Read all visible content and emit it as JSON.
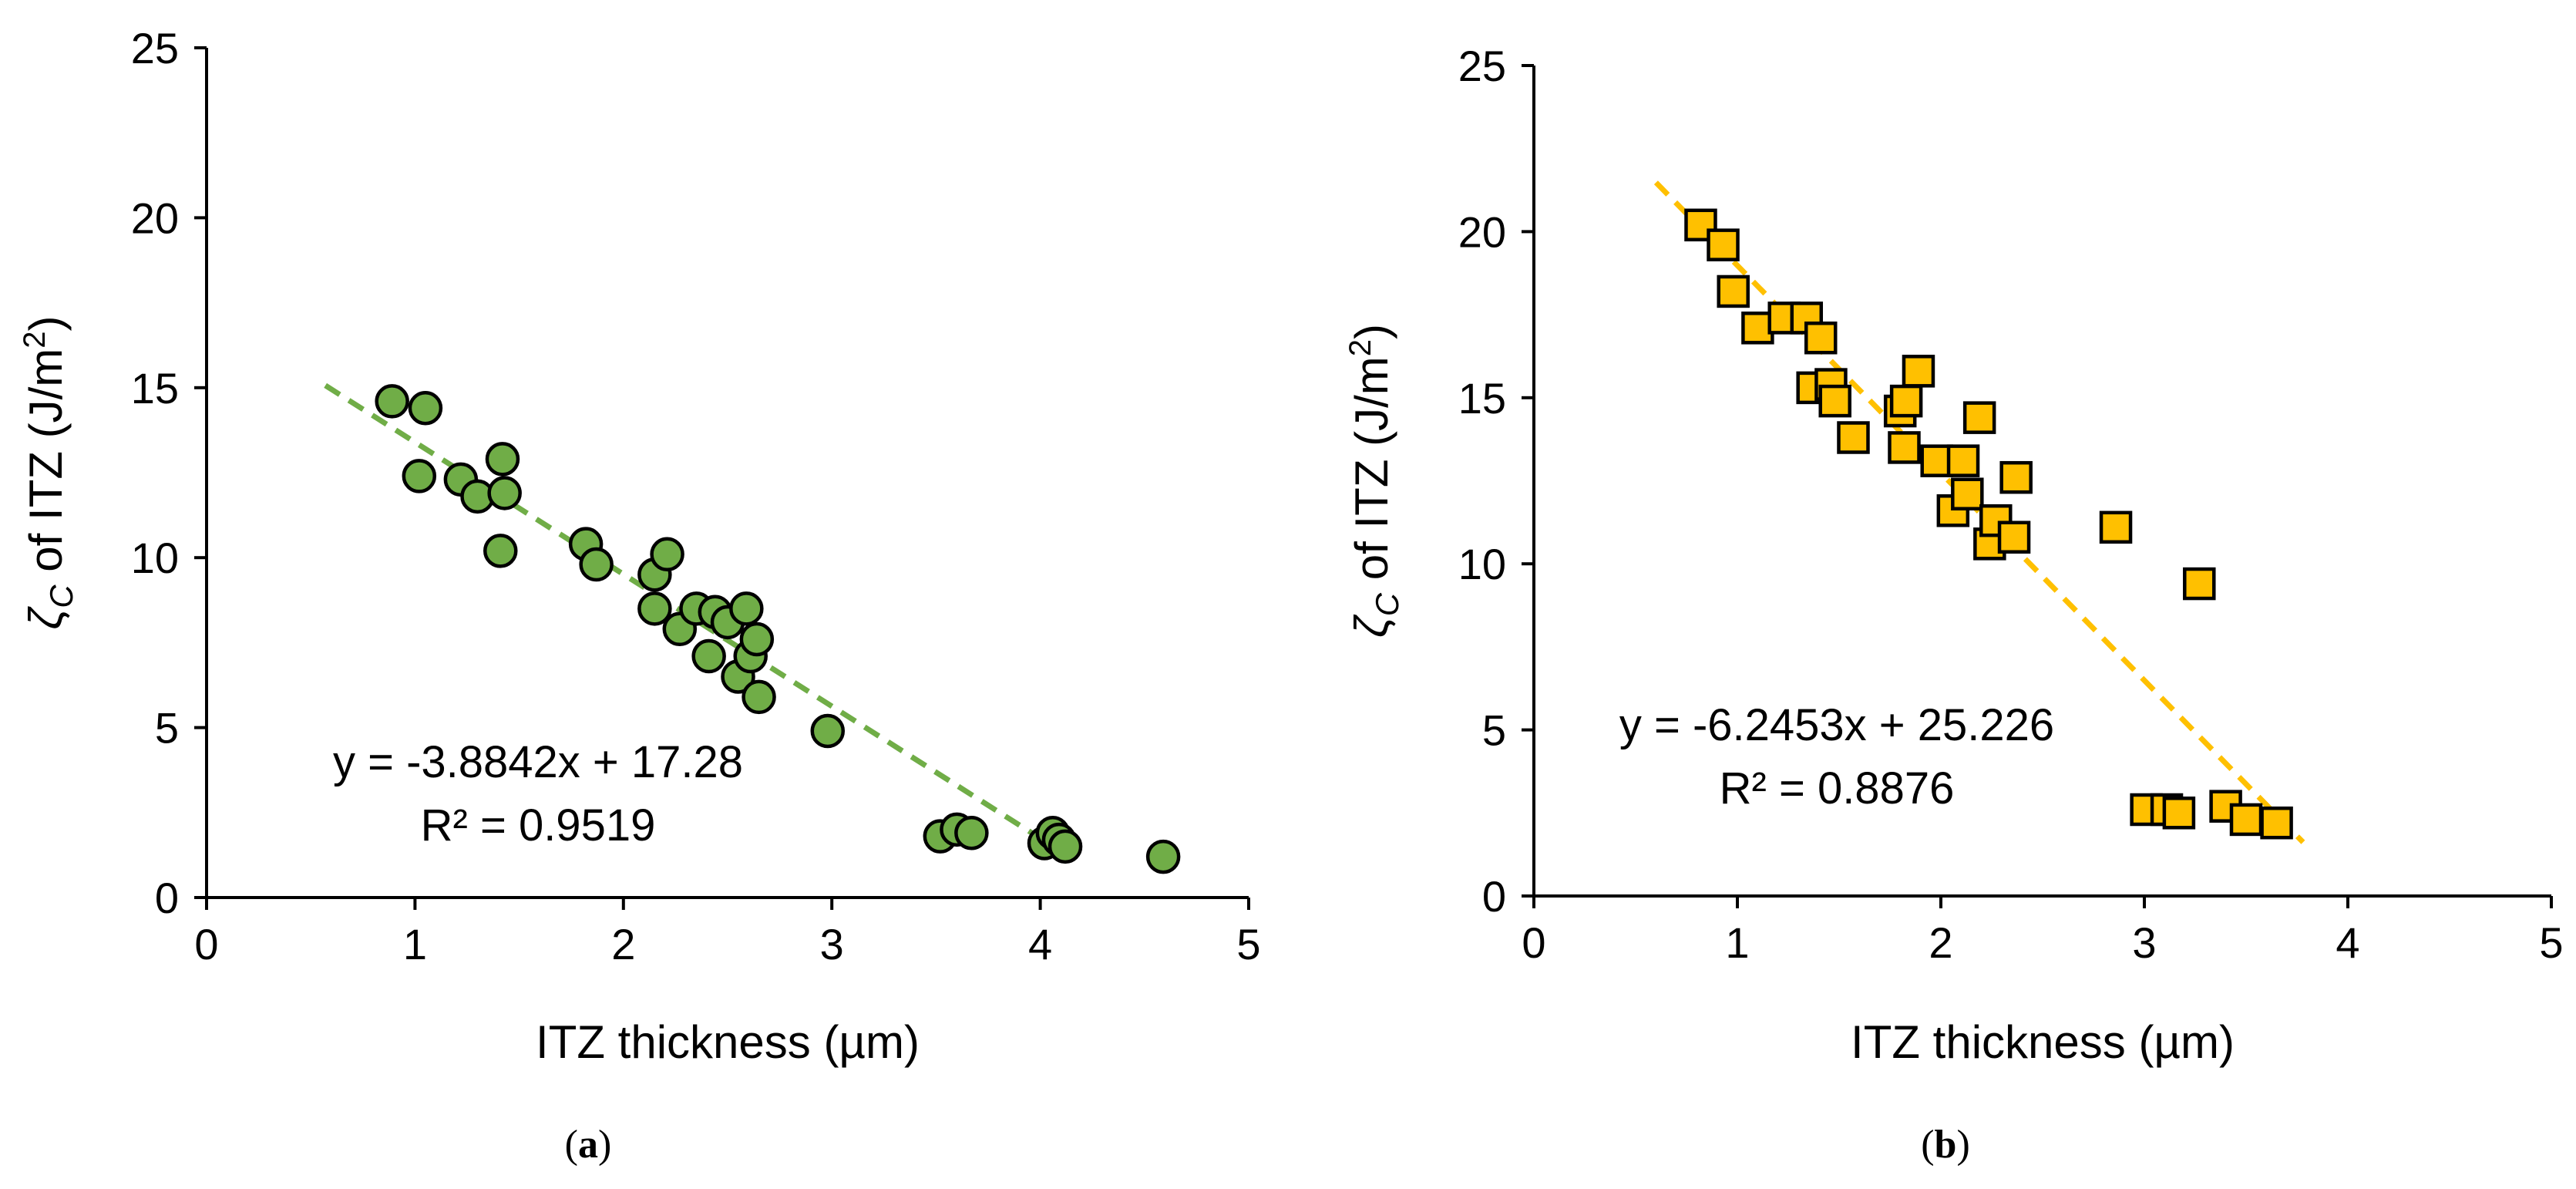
{
  "chart_data": [
    {
      "type": "scatter",
      "panel_label": "a",
      "xlabel": "ITZ thickness (µm)",
      "ylabel": {
        "symbol": "ζ",
        "sub": "C",
        "text": " of ITZ (J/m",
        "sup": "2",
        "tail": ")"
      },
      "xlim": [
        0,
        5
      ],
      "ylim": [
        0,
        25
      ],
      "xticks": [
        0,
        1,
        2,
        3,
        4,
        5
      ],
      "yticks": [
        0,
        5,
        10,
        15,
        20,
        25
      ],
      "marker": "circle",
      "marker_color": "#70ad47",
      "trend_color": "#70ad47",
      "equation": "y = -3.8842x + 17.28",
      "r2": "R² = 0.9519",
      "trendline": {
        "slope": -3.8842,
        "intercept": 17.28,
        "x_range": [
          0.57,
          4.13
        ]
      },
      "points": {
        "x": [
          0.89,
          1.05,
          1.02,
          1.22,
          1.3,
          1.42,
          1.43,
          1.41,
          1.82,
          1.87,
          2.15,
          2.21,
          2.15,
          2.27,
          2.35,
          2.44,
          2.41,
          2.5,
          2.59,
          2.55,
          2.61,
          2.64,
          2.65,
          2.98,
          3.52,
          3.6,
          3.67,
          4.02,
          4.06,
          4.09,
          4.12,
          4.59
        ],
        "y": [
          14.6,
          14.4,
          12.4,
          12.3,
          11.8,
          12.9,
          11.9,
          10.2,
          10.4,
          9.8,
          9.5,
          10.1,
          8.5,
          7.9,
          8.5,
          8.4,
          7.1,
          8.1,
          8.5,
          6.5,
          7.1,
          7.6,
          5.9,
          4.9,
          1.8,
          2.0,
          1.9,
          1.6,
          1.9,
          1.7,
          1.5,
          1.2
        ]
      }
    },
    {
      "type": "scatter",
      "panel_label": "b",
      "xlabel": "ITZ thickness (µm)",
      "ylabel": {
        "symbol": "ζ",
        "sub": "C",
        "text": " of ITZ (J/m",
        "sup": "2",
        "tail": ")"
      },
      "xlim": [
        0,
        5
      ],
      "ylim": [
        0,
        25
      ],
      "xticks": [
        0,
        1,
        2,
        3,
        4,
        5
      ],
      "yticks": [
        0,
        5,
        10,
        15,
        20,
        25
      ],
      "marker": "square",
      "marker_color": "#ffc000",
      "trend_color": "#ffc000",
      "equation": "y = -6.2453x + 25.226",
      "r2": "R² = 0.8876",
      "trendline": {
        "slope": -6.2453,
        "intercept": 25.226,
        "x_range": [
          0.6,
          3.78
        ]
      },
      "points": {
        "x": [
          0.82,
          0.93,
          0.98,
          1.1,
          1.23,
          1.34,
          1.37,
          1.41,
          1.46,
          1.48,
          1.57,
          1.8,
          1.83,
          1.82,
          1.89,
          1.98,
          2.06,
          2.11,
          2.13,
          2.19,
          2.24,
          2.27,
          2.36,
          2.37,
          2.86,
          3.01,
          3.11,
          3.17,
          3.27,
          3.4,
          3.5,
          3.65
        ],
        "y": [
          20.2,
          19.6,
          18.2,
          17.1,
          17.4,
          17.4,
          15.3,
          16.8,
          15.4,
          14.9,
          13.8,
          14.6,
          14.9,
          13.5,
          15.8,
          13.1,
          11.6,
          13.1,
          12.1,
          14.4,
          10.6,
          11.3,
          10.8,
          12.6,
          11.1,
          2.6,
          2.6,
          2.5,
          9.4,
          2.7,
          2.3,
          2.2
        ]
      }
    }
  ]
}
